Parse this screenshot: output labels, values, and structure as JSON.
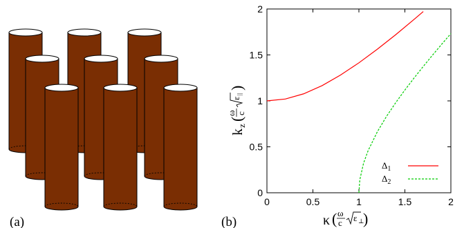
{
  "panels": {
    "a_label": "(a)",
    "b_label": "(b)"
  },
  "colors": {
    "rod_fill": "#7a2e03",
    "rod_outline": "#000000",
    "rod_top": "#ffffff",
    "delta1": "#ff0000",
    "delta2": "#00cc00"
  },
  "chart_data": {
    "type": "line",
    "xlim": [
      0,
      2
    ],
    "ylim": [
      0,
      2
    ],
    "x_ticks": [
      "0",
      "0.5",
      "1",
      "1.5",
      "2"
    ],
    "y_ticks": [
      "0",
      "0.5",
      "1",
      "1.5",
      "2"
    ],
    "xlabel": {
      "main": "κ",
      "num": "ω",
      "den": "c",
      "eps_sub": "⊥"
    },
    "ylabel": {
      "main": "k",
      "main_sub": "z",
      "num": "ω",
      "den": "c",
      "eps_sub": "||"
    },
    "legend_position": "bottom-right",
    "grid": false,
    "series": [
      {
        "name": "Δ",
        "sub": "1",
        "style": "solid",
        "x": [
          0,
          0.2,
          0.4,
          0.6,
          0.8,
          1.0,
          1.2,
          1.4,
          1.6,
          1.7
        ],
        "y": [
          1.0,
          1.02,
          1.077,
          1.166,
          1.281,
          1.414,
          1.562,
          1.72,
          1.887,
          1.972
        ]
      },
      {
        "name": "Δ",
        "sub": "2",
        "style": "dashed",
        "x": [
          1.0,
          1.01,
          1.05,
          1.1,
          1.2,
          1.3,
          1.4,
          1.5,
          1.6,
          1.7,
          1.8,
          1.9,
          2.0
        ],
        "y": [
          0,
          0.141,
          0.32,
          0.458,
          0.663,
          0.831,
          0.98,
          1.118,
          1.249,
          1.375,
          1.497,
          1.616,
          1.732
        ]
      }
    ]
  }
}
